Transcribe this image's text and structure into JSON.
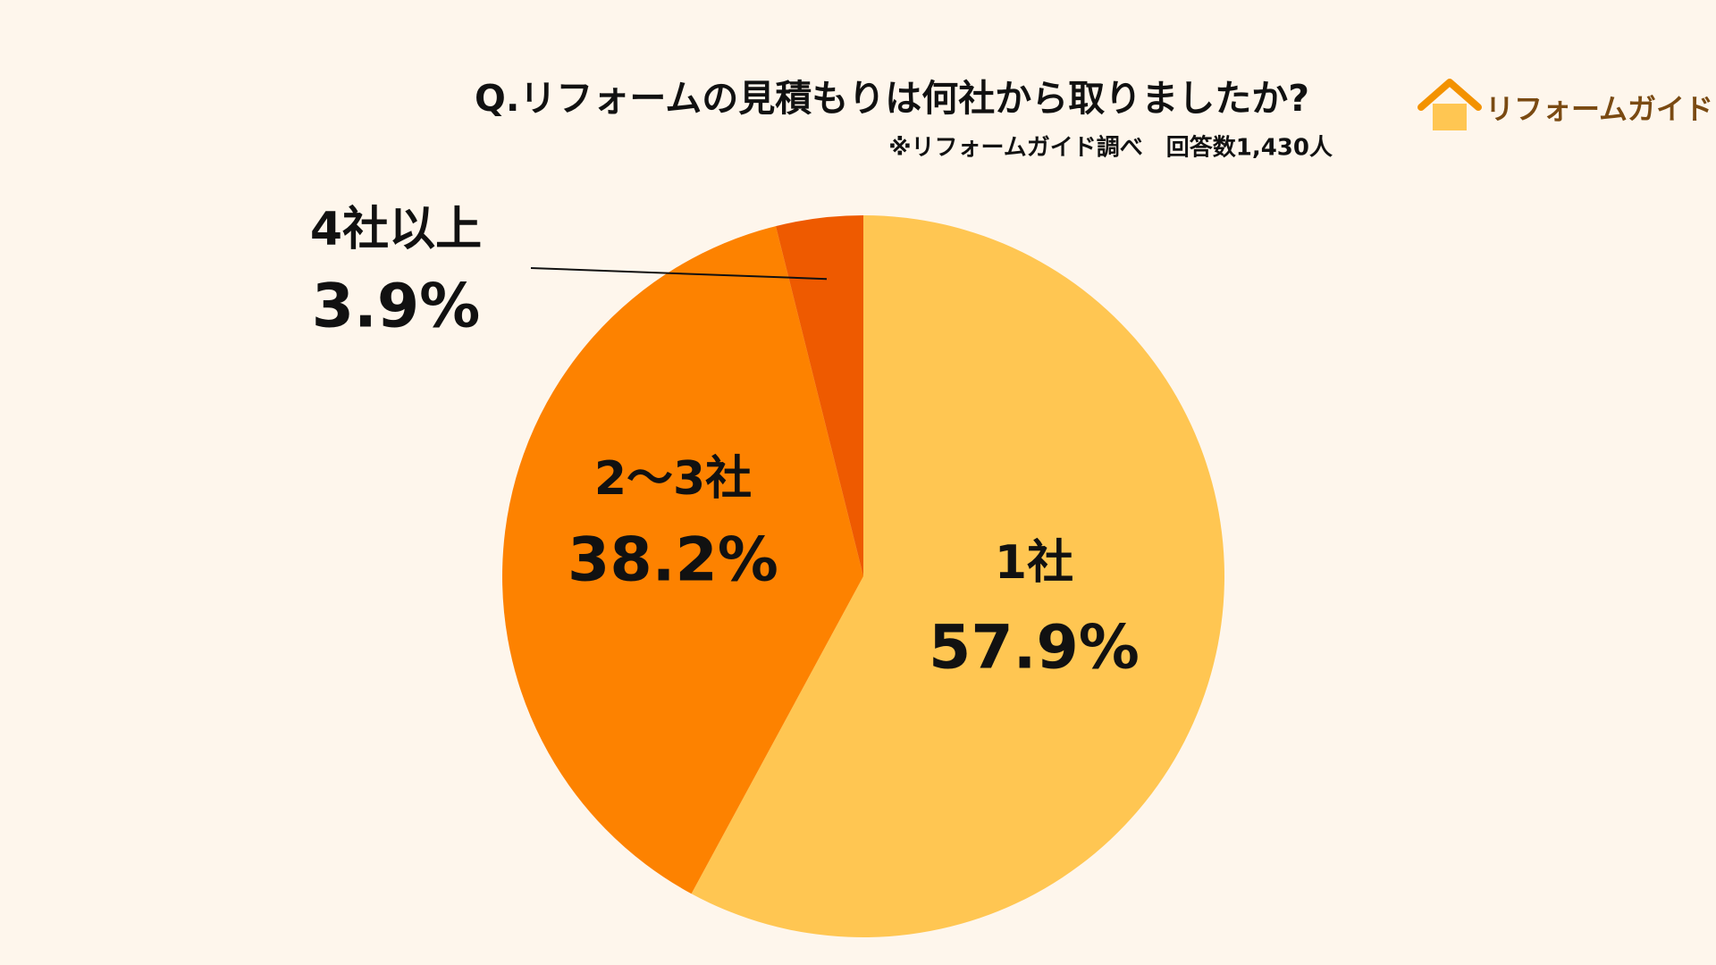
{
  "chart_data": {
    "type": "pie",
    "title": "Q.リフォームの見積もりは何社から取りましたか?",
    "subtitle": "※リフォームガイド調べ　回答数1,430人",
    "categories": [
      "1社",
      "2〜3社",
      "4社以上"
    ],
    "values": [
      57.9,
      38.2,
      3.9
    ],
    "value_labels": [
      "57.9%",
      "38.2%",
      "3.9%"
    ],
    "colors": [
      "#FFC652",
      "#FD8200",
      "#EE5A00"
    ]
  },
  "logo": "リフォームガイド"
}
